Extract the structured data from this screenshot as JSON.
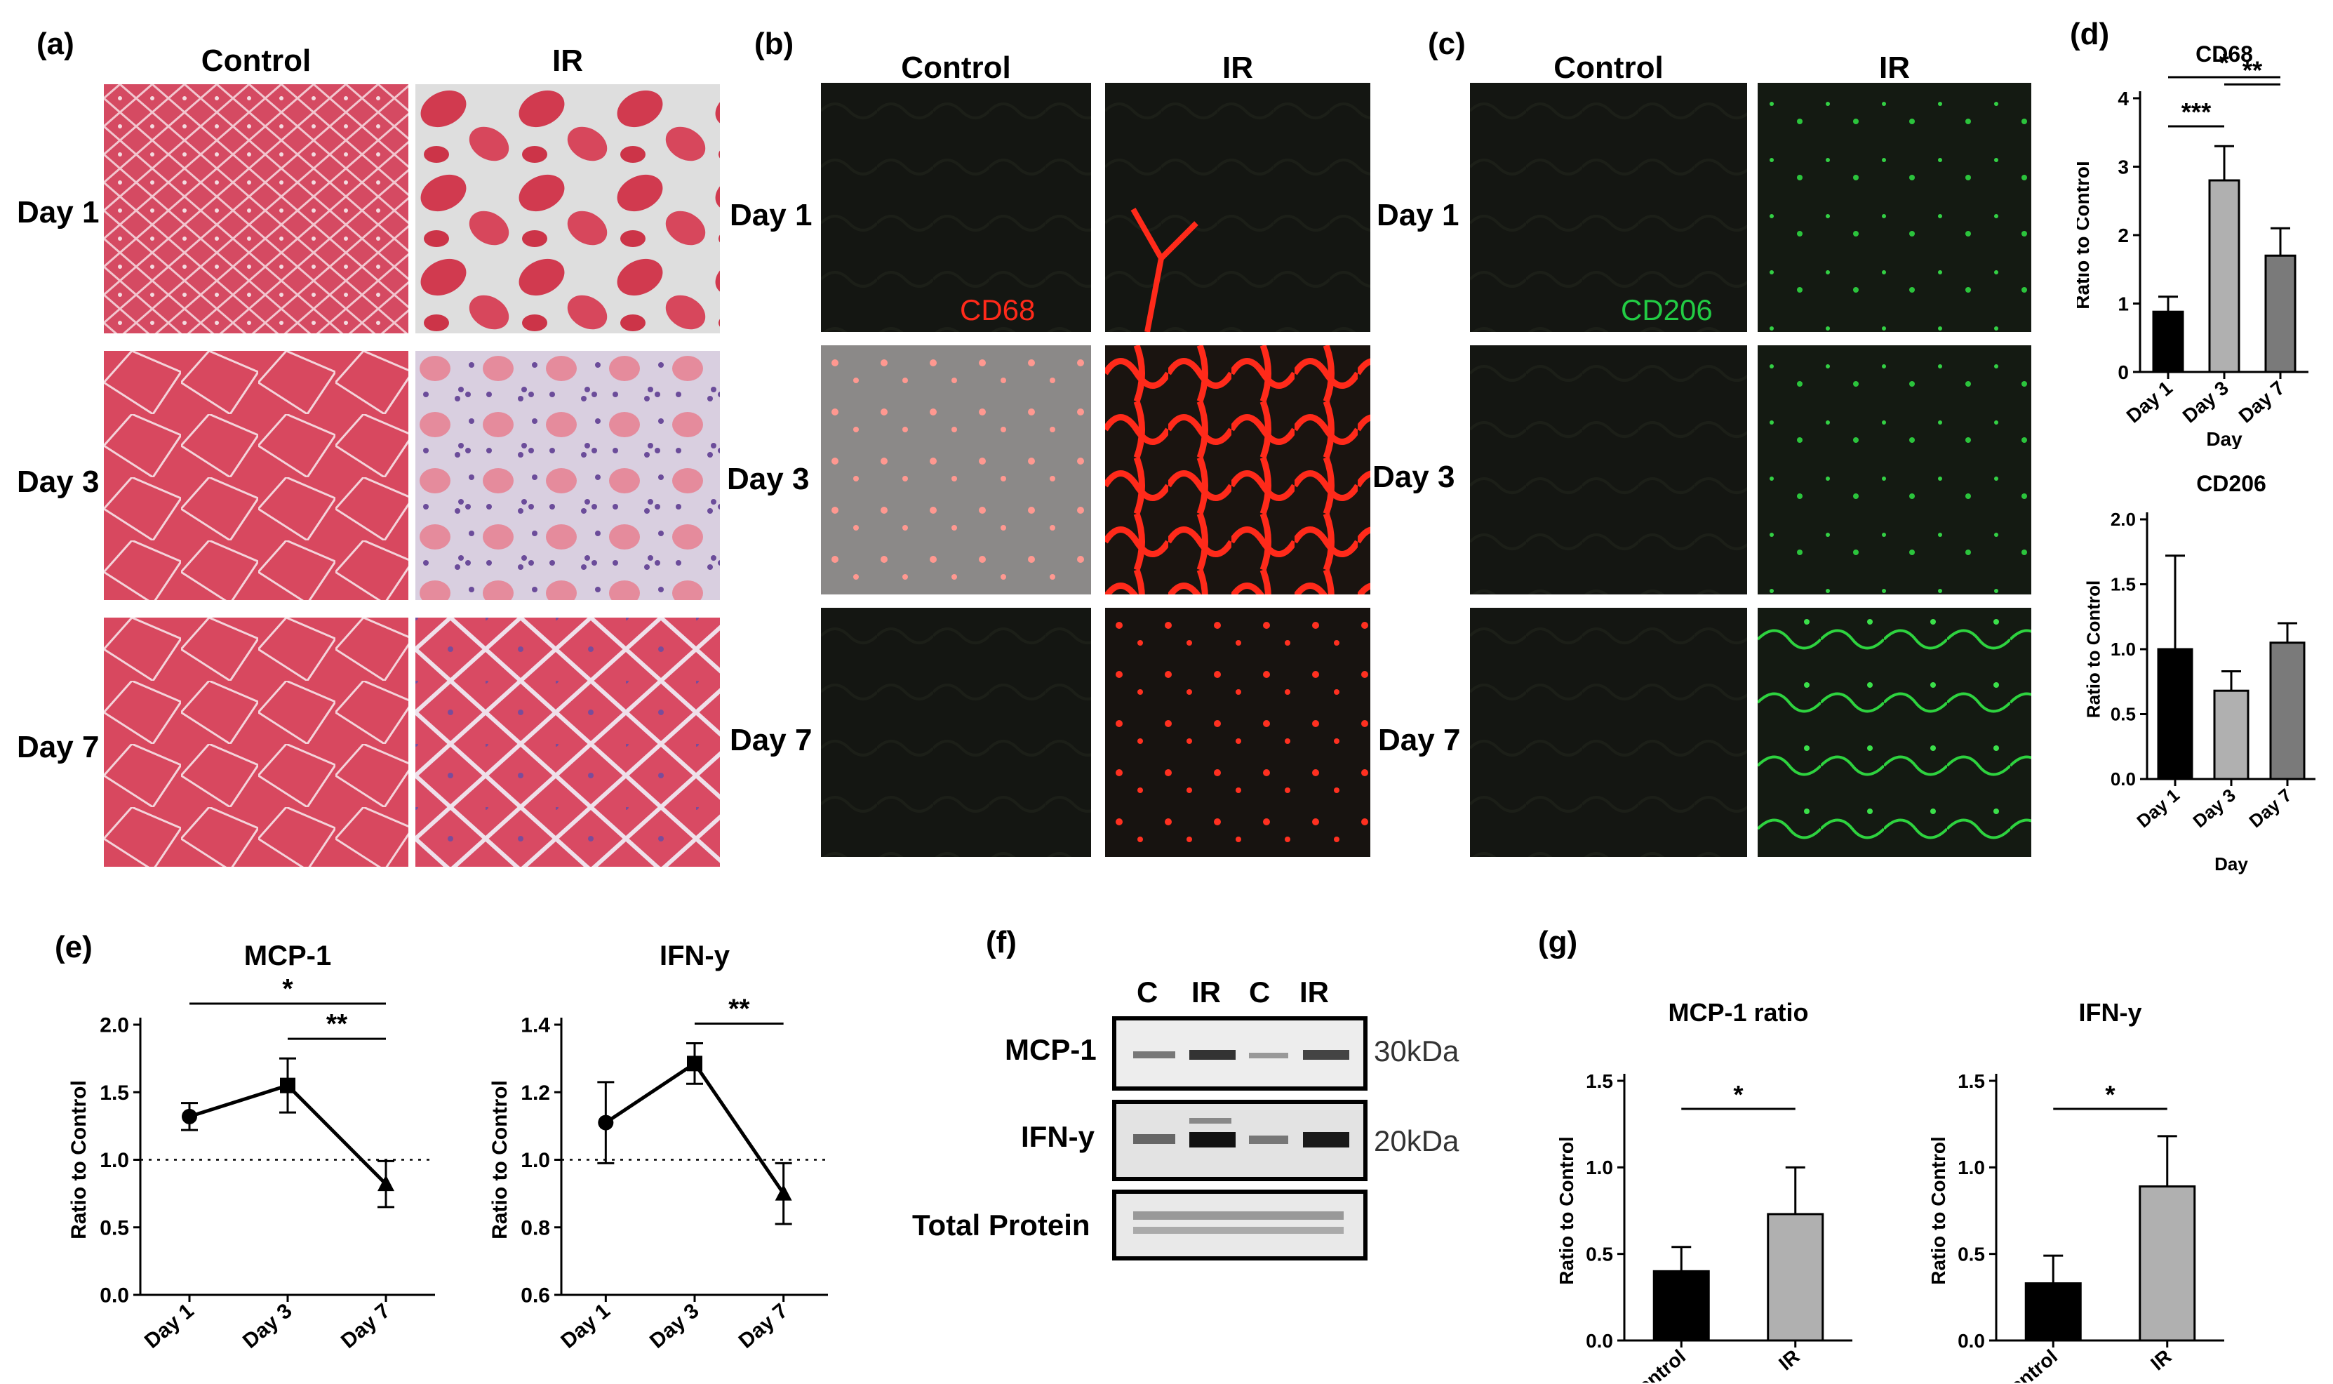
{
  "panels": {
    "a": {
      "label": "(a)",
      "columns": [
        "Control",
        "IR"
      ],
      "rows": [
        "Day 1",
        "Day 3",
        "Day 7"
      ]
    },
    "b": {
      "label": "(b)",
      "columns": [
        "Control",
        "IR"
      ],
      "rows": [
        "Day 1",
        "Day 3",
        "Day 7"
      ],
      "stain_label": "CD68"
    },
    "c": {
      "label": "(c)",
      "columns": [
        "Control",
        "IR"
      ],
      "rows": [
        "Day 1",
        "Day 3",
        "Day 7"
      ],
      "stain_label": "CD206"
    },
    "d": {
      "label": "(d)"
    },
    "e": {
      "label": "(e)"
    },
    "f": {
      "label": "(f)",
      "lanes": [
        "C",
        "IR",
        "C",
        "IR"
      ],
      "bands": [
        {
          "name": "MCP-1",
          "size": "30kDa"
        },
        {
          "name": "IFN-y",
          "size": "20kDa"
        },
        {
          "name": "Total Protein",
          "size": ""
        }
      ]
    },
    "g": {
      "label": "(g)"
    }
  },
  "colors": {
    "cd68": "#ff2a1a",
    "cd206": "#22cc44",
    "he_pink": "#d8405a",
    "bar_black": "#000000",
    "bar_light": "#b0b0b0",
    "bar_mid": "#7a7a7a"
  },
  "chart_data": [
    {
      "id": "d_cd68",
      "type": "bar",
      "title": "CD68",
      "categories": [
        "Day 1",
        "Day 3",
        "Day 7"
      ],
      "values": [
        0.88,
        2.8,
        1.7
      ],
      "errors": [
        0.22,
        0.5,
        0.4
      ],
      "ylim": [
        0,
        4
      ],
      "yticks": [
        0,
        1,
        2,
        3,
        4
      ],
      "xlabel": "Day",
      "ylabel": "Ratio to Control",
      "significance": [
        {
          "from": 0,
          "to": 1,
          "label": "***"
        },
        {
          "from": 1,
          "to": 2,
          "label": "**"
        },
        {
          "from": 0,
          "to": 2,
          "label": "*"
        }
      ]
    },
    {
      "id": "d_cd206",
      "type": "bar",
      "title": "CD206",
      "categories": [
        "Day 1",
        "Day 3",
        "Day 7"
      ],
      "values": [
        1.0,
        0.68,
        1.05
      ],
      "errors": [
        0.72,
        0.15,
        0.15
      ],
      "ylim": [
        0,
        2
      ],
      "yticks": [
        "0.0",
        "0.5",
        "1.0",
        "1.5",
        "2.0"
      ],
      "xlabel": "Day",
      "ylabel": "Ratio to Control",
      "significance": []
    },
    {
      "id": "e_mcp1",
      "type": "line",
      "title": "MCP-1",
      "categories": [
        "Day 1",
        "Day 3",
        "Day 7"
      ],
      "values": [
        1.32,
        1.55,
        0.82
      ],
      "errors": [
        0.1,
        0.2,
        0.17
      ],
      "ylim": [
        0,
        2
      ],
      "yticks": [
        "0.0",
        "0.5",
        "1.0",
        "1.5",
        "2.0"
      ],
      "reference_line": 1.0,
      "xlabel": "",
      "ylabel": "Ratio to Control",
      "significance": [
        {
          "from": 0,
          "to": 2,
          "label": "*"
        },
        {
          "from": 1,
          "to": 2,
          "label": "**"
        }
      ]
    },
    {
      "id": "e_ifn",
      "type": "line",
      "title": "IFN-y",
      "categories": [
        "Day 1",
        "Day 3",
        "Day 7"
      ],
      "values": [
        1.11,
        1.285,
        0.9
      ],
      "errors": [
        0.12,
        0.06,
        0.09
      ],
      "ylim": [
        0.6,
        1.4
      ],
      "yticks": [
        "0.6",
        "0.8",
        "1.0",
        "1.2",
        "1.4"
      ],
      "reference_line": 1.0,
      "xlabel": "",
      "ylabel": "Ratio to Control",
      "significance": [
        {
          "from": 1,
          "to": 2,
          "label": "**"
        }
      ]
    },
    {
      "id": "g_mcp1",
      "type": "bar",
      "title": "MCP-1 ratio",
      "categories": [
        "Control",
        "IR"
      ],
      "values": [
        0.4,
        0.73
      ],
      "errors": [
        0.14,
        0.27
      ],
      "ylim": [
        0,
        1.5
      ],
      "yticks": [
        "0.0",
        "0.5",
        "1.0",
        "1.5"
      ],
      "xlabel": "",
      "ylabel": "Ratio to Control",
      "significance": [
        {
          "from": 0,
          "to": 1,
          "label": "*"
        }
      ]
    },
    {
      "id": "g_ifn",
      "type": "bar",
      "title": "IFN-y",
      "categories": [
        "Control",
        "IR"
      ],
      "values": [
        0.33,
        0.89
      ],
      "errors": [
        0.16,
        0.29
      ],
      "ylim": [
        0,
        1.5
      ],
      "yticks": [
        "0.0",
        "0.5",
        "1.0",
        "1.5"
      ],
      "xlabel": "",
      "ylabel": "Ratio to Control",
      "significance": [
        {
          "from": 0,
          "to": 1,
          "label": "*"
        }
      ]
    }
  ]
}
